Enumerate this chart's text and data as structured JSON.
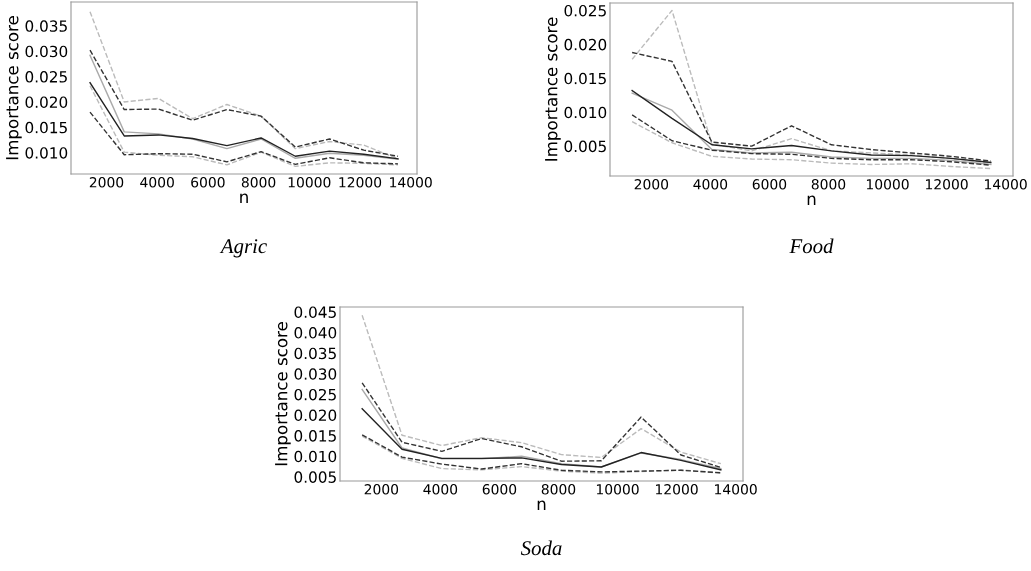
{
  "chart_data": [
    {
      "type": "line",
      "title": "Agric",
      "xlabel": "n",
      "ylabel": "Importance score",
      "x": [
        1350,
        2700,
        4050,
        5400,
        6750,
        8100,
        9450,
        10800,
        12150,
        13500
      ],
      "xlim": [
        600,
        14250
      ],
      "xticks": [
        2000,
        4000,
        6000,
        8000,
        10000,
        12000,
        14000
      ],
      "ylim": [
        0.0058,
        0.0397
      ],
      "yticks": [
        {
          "value": 0.01,
          "label": "0.010"
        },
        0.015,
        {
          "value": 0.02,
          "label": "0.020"
        },
        0.025,
        {
          "value": 0.03,
          "label": "0.030"
        },
        0.035
      ],
      "grid": false,
      "legend": false,
      "marker": "none",
      "series": [
        {
          "color": "#bbbbbb",
          "line_style": "dashed",
          "values": [
            0.0378,
            0.02,
            0.0207,
            0.0167,
            0.0195,
            0.0172,
            0.0108,
            0.0122,
            0.0115,
            0.0088
          ]
        },
        {
          "color": "#bbbbbb",
          "line_style": "dashed",
          "values": [
            0.0232,
            0.0101,
            0.0095,
            0.0092,
            0.0076,
            0.0101,
            0.0073,
            0.008,
            0.0079,
            0.0076
          ]
        },
        {
          "color": "#aaaaaa",
          "line_style": "solid",
          "values": [
            0.0292,
            0.0141,
            0.0137,
            0.0127,
            0.0108,
            0.0127,
            0.0089,
            0.0099,
            0.0095,
            0.0087
          ]
        },
        {
          "color": "#333333",
          "line_style": "dashed",
          "values": [
            0.0302,
            0.0185,
            0.0186,
            0.0164,
            0.0185,
            0.0172,
            0.0111,
            0.0127,
            0.0105,
            0.0093
          ]
        },
        {
          "color": "#333333",
          "line_style": "dashed",
          "values": [
            0.018,
            0.0096,
            0.0098,
            0.0097,
            0.0082,
            0.0102,
            0.0077,
            0.009,
            0.008,
            0.0078
          ]
        },
        {
          "color": "#222222",
          "line_style": "solid",
          "values": [
            0.0238,
            0.0133,
            0.0135,
            0.0128,
            0.0114,
            0.0129,
            0.0093,
            0.0103,
            0.0097,
            0.0088
          ]
        }
      ]
    },
    {
      "type": "line",
      "title": "Food",
      "xlabel": "n",
      "ylabel": "Importance score",
      "x": [
        1350,
        2700,
        4050,
        5400,
        6750,
        8100,
        9450,
        10800,
        12150,
        13500
      ],
      "xlim": [
        600,
        14250
      ],
      "xticks": [
        2000,
        4000,
        6000,
        8000,
        10000,
        12000,
        14000
      ],
      "ylim": [
        0.0006,
        0.0261
      ],
      "yticks": [
        0.005,
        {
          "value": 0.01,
          "label": "0.010"
        },
        0.015,
        {
          "value": 0.02,
          "label": "0.020"
        },
        0.025
      ],
      "grid": false,
      "legend": false,
      "marker": "none",
      "series": [
        {
          "color": "#bbbbbb",
          "line_style": "dashed",
          "values": [
            0.0178,
            0.025,
            0.0053,
            0.0043,
            0.0061,
            0.0043,
            0.004,
            0.0037,
            0.0032,
            0.0025
          ]
        },
        {
          "color": "#bbbbbb",
          "line_style": "dashed",
          "values": [
            0.0086,
            0.0055,
            0.0035,
            0.0031,
            0.003,
            0.0025,
            0.0023,
            0.0024,
            0.002,
            0.0017
          ]
        },
        {
          "color": "#aaaaaa",
          "line_style": "solid",
          "values": [
            0.0128,
            0.0103,
            0.0045,
            0.004,
            0.0041,
            0.0034,
            0.0032,
            0.0032,
            0.0029,
            0.0023
          ]
        },
        {
          "color": "#333333",
          "line_style": "dashed",
          "values": [
            0.0188,
            0.0175,
            0.0056,
            0.005,
            0.008,
            0.0052,
            0.0045,
            0.004,
            0.0035,
            0.0028
          ]
        },
        {
          "color": "#333333",
          "line_style": "dashed",
          "values": [
            0.0096,
            0.0058,
            0.0044,
            0.0039,
            0.0038,
            0.0032,
            0.003,
            0.003,
            0.0027,
            0.0022
          ]
        },
        {
          "color": "#222222",
          "line_style": "solid",
          "values": [
            0.0132,
            0.0091,
            0.0052,
            0.0046,
            0.0051,
            0.0043,
            0.0037,
            0.0036,
            0.0032,
            0.0026
          ]
        }
      ]
    },
    {
      "type": "line",
      "title": "Soda",
      "xlabel": "n",
      "ylabel": "Importance score",
      "x": [
        1350,
        2700,
        4050,
        5400,
        6750,
        8100,
        9450,
        10800,
        12150,
        13500
      ],
      "xlim": [
        600,
        14250
      ],
      "xticks": [
        2000,
        4000,
        6000,
        8000,
        10000,
        12000,
        14000
      ],
      "ylim": [
        0.004,
        0.0462
      ],
      "yticks": [
        0.005,
        {
          "value": 0.01,
          "label": "0.010"
        },
        0.015,
        {
          "value": 0.02,
          "label": "0.020"
        },
        0.025,
        {
          "value": 0.03,
          "label": "0.030"
        },
        0.035,
        {
          "value": 0.04,
          "label": "0.040"
        },
        0.045
      ],
      "grid": false,
      "legend": false,
      "marker": "none",
      "series": [
        {
          "color": "#bbbbbb",
          "line_style": "dashed",
          "values": [
            0.0442,
            0.0151,
            0.0126,
            0.0145,
            0.0133,
            0.0104,
            0.0097,
            0.0167,
            0.011,
            0.0082
          ]
        },
        {
          "color": "#bbbbbb",
          "line_style": "dashed",
          "values": [
            0.0149,
            0.0095,
            0.007,
            0.0067,
            0.0075,
            0.0064,
            0.0059,
            0.0063,
            0.0067,
            0.0059
          ]
        },
        {
          "color": "#aaaaaa",
          "line_style": "solid",
          "values": [
            0.0262,
            0.012,
            0.0094,
            0.0094,
            0.01,
            0.0082,
            0.0074,
            0.0108,
            0.0092,
            0.007
          ]
        },
        {
          "color": "#333333",
          "line_style": "dashed",
          "values": [
            0.0278,
            0.0134,
            0.0112,
            0.0143,
            0.0123,
            0.0088,
            0.0089,
            0.0195,
            0.0103,
            0.0073
          ]
        },
        {
          "color": "#333333",
          "line_style": "dashed",
          "values": [
            0.0152,
            0.0098,
            0.0081,
            0.0069,
            0.0082,
            0.0066,
            0.0062,
            0.0064,
            0.0066,
            0.006
          ]
        },
        {
          "color": "#222222",
          "line_style": "solid",
          "values": [
            0.0215,
            0.0117,
            0.0095,
            0.0095,
            0.0096,
            0.008,
            0.0074,
            0.0109,
            0.009,
            0.0067
          ]
        }
      ]
    }
  ]
}
